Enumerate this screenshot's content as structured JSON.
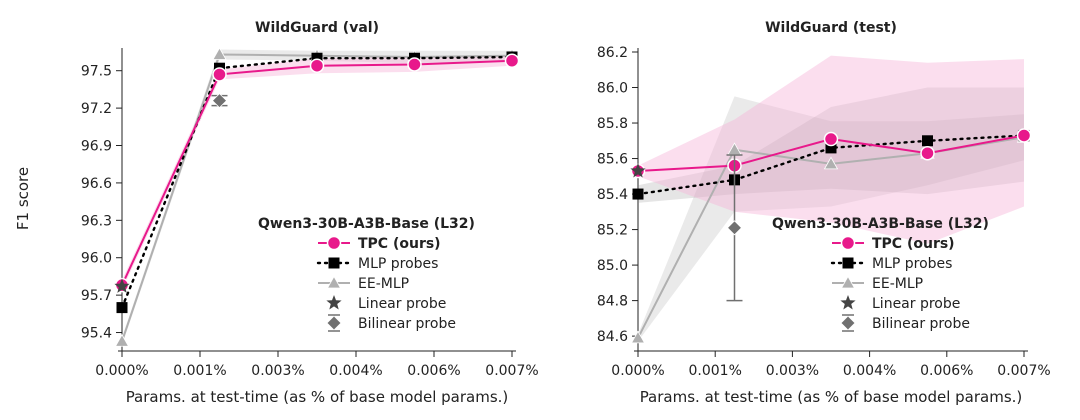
{
  "chart_data": [
    {
      "type": "line",
      "title": "WildGuard (val)",
      "xlabel": "Params. at test-time (as % of base model params.)",
      "ylabel": "F1 score",
      "xlim": [
        0,
        0.007
      ],
      "ylim": [
        95.3,
        97.65
      ],
      "xticks": [
        0,
        0.00175,
        0.0035,
        0.00525,
        0.007
      ],
      "xtick_labels": [
        "0.000%",
        "0.001%",
        "0.003%",
        "0.004%",
        "0.006%",
        "0.007%"
      ],
      "xtick_positions": [
        0,
        0.0014,
        0.0028,
        0.0042,
        0.0056,
        0.007
      ],
      "yticks": [
        95.4,
        95.7,
        96.0,
        96.3,
        96.6,
        96.9,
        97.2,
        97.5
      ],
      "ytick_labels": [
        "95.4",
        "95.7",
        "96.0",
        "96.3",
        "96.6",
        "96.9",
        "97.2",
        "97.5"
      ],
      "series": [
        {
          "name": "TPC (ours)",
          "color": "#e8198b",
          "style": "solid",
          "marker": "circle",
          "x": [
            0,
            0.00175,
            0.0035,
            0.00525,
            0.007
          ],
          "y": [
            95.78,
            97.47,
            97.54,
            97.55,
            97.58
          ],
          "band": [
            [
              95.74,
              95.82
            ],
            [
              97.43,
              97.51
            ],
            [
              97.48,
              97.6
            ],
            [
              97.49,
              97.61
            ],
            [
              97.54,
              97.62
            ]
          ]
        },
        {
          "name": "MLP probes",
          "color": "#000000",
          "style": "dotted",
          "marker": "square",
          "x": [
            0,
            0.00175,
            0.0035,
            0.00525,
            0.007
          ],
          "y": [
            95.6,
            97.52,
            97.6,
            97.6,
            97.61
          ]
        },
        {
          "name": "EE-MLP",
          "color": "#b0b0b0",
          "style": "solid",
          "marker": "triangle",
          "x": [
            0,
            0.00175,
            0.0035,
            0.00525,
            0.007
          ],
          "y": [
            95.33,
            97.63,
            97.62,
            97.61,
            97.62
          ],
          "band": [
            [
              95.3,
              95.36
            ],
            [
              97.59,
              97.67
            ],
            [
              97.58,
              97.66
            ],
            [
              97.56,
              97.66
            ],
            [
              97.58,
              97.66
            ]
          ]
        },
        {
          "name": "Linear probe",
          "color": "#444444",
          "marker": "star",
          "x": [
            0
          ],
          "y": [
            95.77
          ]
        },
        {
          "name": "Bilinear probe",
          "color": "#707070",
          "marker": "diamond",
          "x": [
            0.00175
          ],
          "y": [
            97.26
          ],
          "err": [
            0.04
          ]
        }
      ],
      "legend": {
        "title": "Qwen3-30B-A3B-Base (L32)",
        "position": "lower-right"
      }
    },
    {
      "type": "line",
      "title": "WildGuard (test)",
      "xlabel": "Params. at test-time (as % of base model params.)",
      "ylabel": "",
      "xlim": [
        0,
        0.007
      ],
      "ylim": [
        84.55,
        86.2
      ],
      "xtick_labels": [
        "0.000%",
        "0.001%",
        "0.003%",
        "0.004%",
        "0.006%",
        "0.007%"
      ],
      "xtick_positions": [
        0,
        0.0014,
        0.0028,
        0.0042,
        0.0056,
        0.007
      ],
      "yticks": [
        84.6,
        84.8,
        85.0,
        85.2,
        85.4,
        85.6,
        85.8,
        86.0,
        86.2
      ],
      "ytick_labels": [
        "84.6",
        "84.8",
        "85.0",
        "85.2",
        "85.4",
        "85.6",
        "85.8",
        "86.0",
        "86.2"
      ],
      "series": [
        {
          "name": "TPC (ours)",
          "color": "#e8198b",
          "style": "solid",
          "marker": "circle",
          "x": [
            0,
            0.00175,
            0.0035,
            0.00525,
            0.007
          ],
          "y": [
            85.53,
            85.56,
            85.71,
            85.63,
            85.73
          ],
          "band": [
            [
              85.5,
              85.56
            ],
            [
              85.3,
              85.82
            ],
            [
              85.24,
              86.18
            ],
            [
              85.12,
              86.14
            ],
            [
              85.33,
              86.16
            ]
          ]
        },
        {
          "name": "MLP probes",
          "color": "#000000",
          "style": "dotted",
          "marker": "square",
          "x": [
            0,
            0.00175,
            0.0035,
            0.00525,
            0.007
          ],
          "y": [
            85.4,
            85.48,
            85.66,
            85.7,
            85.73
          ],
          "band": [
            [
              85.35,
              85.45
            ],
            [
              85.4,
              85.56
            ],
            [
              85.43,
              85.89
            ],
            [
              85.4,
              86.0
            ],
            [
              85.47,
              86.0
            ]
          ]
        },
        {
          "name": "EE-MLP",
          "color": "#b0b0b0",
          "style": "solid",
          "marker": "triangle",
          "x": [
            0,
            0.00175,
            0.0035,
            0.00525,
            0.007
          ],
          "y": [
            84.59,
            85.65,
            85.57,
            85.63,
            85.72
          ],
          "band": [
            [
              84.57,
              84.61
            ],
            [
              85.3,
              85.95
            ],
            [
              85.33,
              85.81
            ],
            [
              85.45,
              85.81
            ],
            [
              85.59,
              85.85
            ]
          ]
        },
        {
          "name": "Linear probe",
          "color": "#444444",
          "marker": "star",
          "x": [
            0
          ],
          "y": [
            85.53
          ]
        },
        {
          "name": "Bilinear probe",
          "color": "#707070",
          "marker": "diamond",
          "x": [
            0.00175
          ],
          "y": [
            85.21
          ],
          "err": [
            0.41
          ]
        }
      ],
      "legend": {
        "title": "Qwen3-30B-A3B-Base (L32)",
        "position": "lower-right"
      }
    }
  ]
}
